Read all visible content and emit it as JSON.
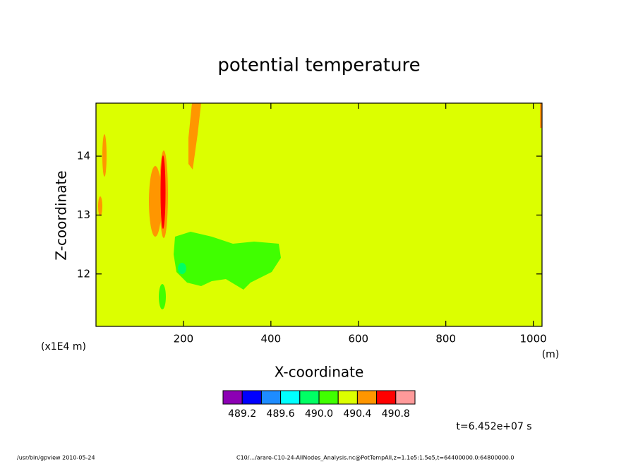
{
  "chart_data": {
    "type": "contour",
    "title": "potential temperature",
    "x_label": "X-coordinate",
    "y_label": "Z-coordinate",
    "x_unit": "(m)",
    "y_unit": "(x1E4 m)",
    "xlim": [
      0,
      1020
    ],
    "xticks": [
      200,
      400,
      600,
      800,
      1000
    ],
    "ylim": [
      11.11,
      14.9
    ],
    "yticks": [
      12,
      13,
      14
    ],
    "colorbar": {
      "lim": [
        489.0,
        491.0
      ],
      "colors": [
        "#8c00b4",
        "#0000ff",
        "#1e8cff",
        "#00ffff",
        "#00ff64",
        "#40ff00",
        "#dcff00",
        "#ff9600",
        "#ff0000",
        "#ff9a9a"
      ],
      "ticks": [
        489.2,
        489.6,
        {
          "value": 490.0,
          "label": "490.0"
        },
        490.4,
        490.8
      ]
    },
    "time_label": "t=6.452e+07 s",
    "footer_left": "/usr/bin/gpview   2010-05-24",
    "footer_right": "C10/.../arare-C10-24-AllNodes_Analysis.nc@PotTempAll,z=1.1e5:1.5e5,t=64400000.0:64800000.0"
  }
}
